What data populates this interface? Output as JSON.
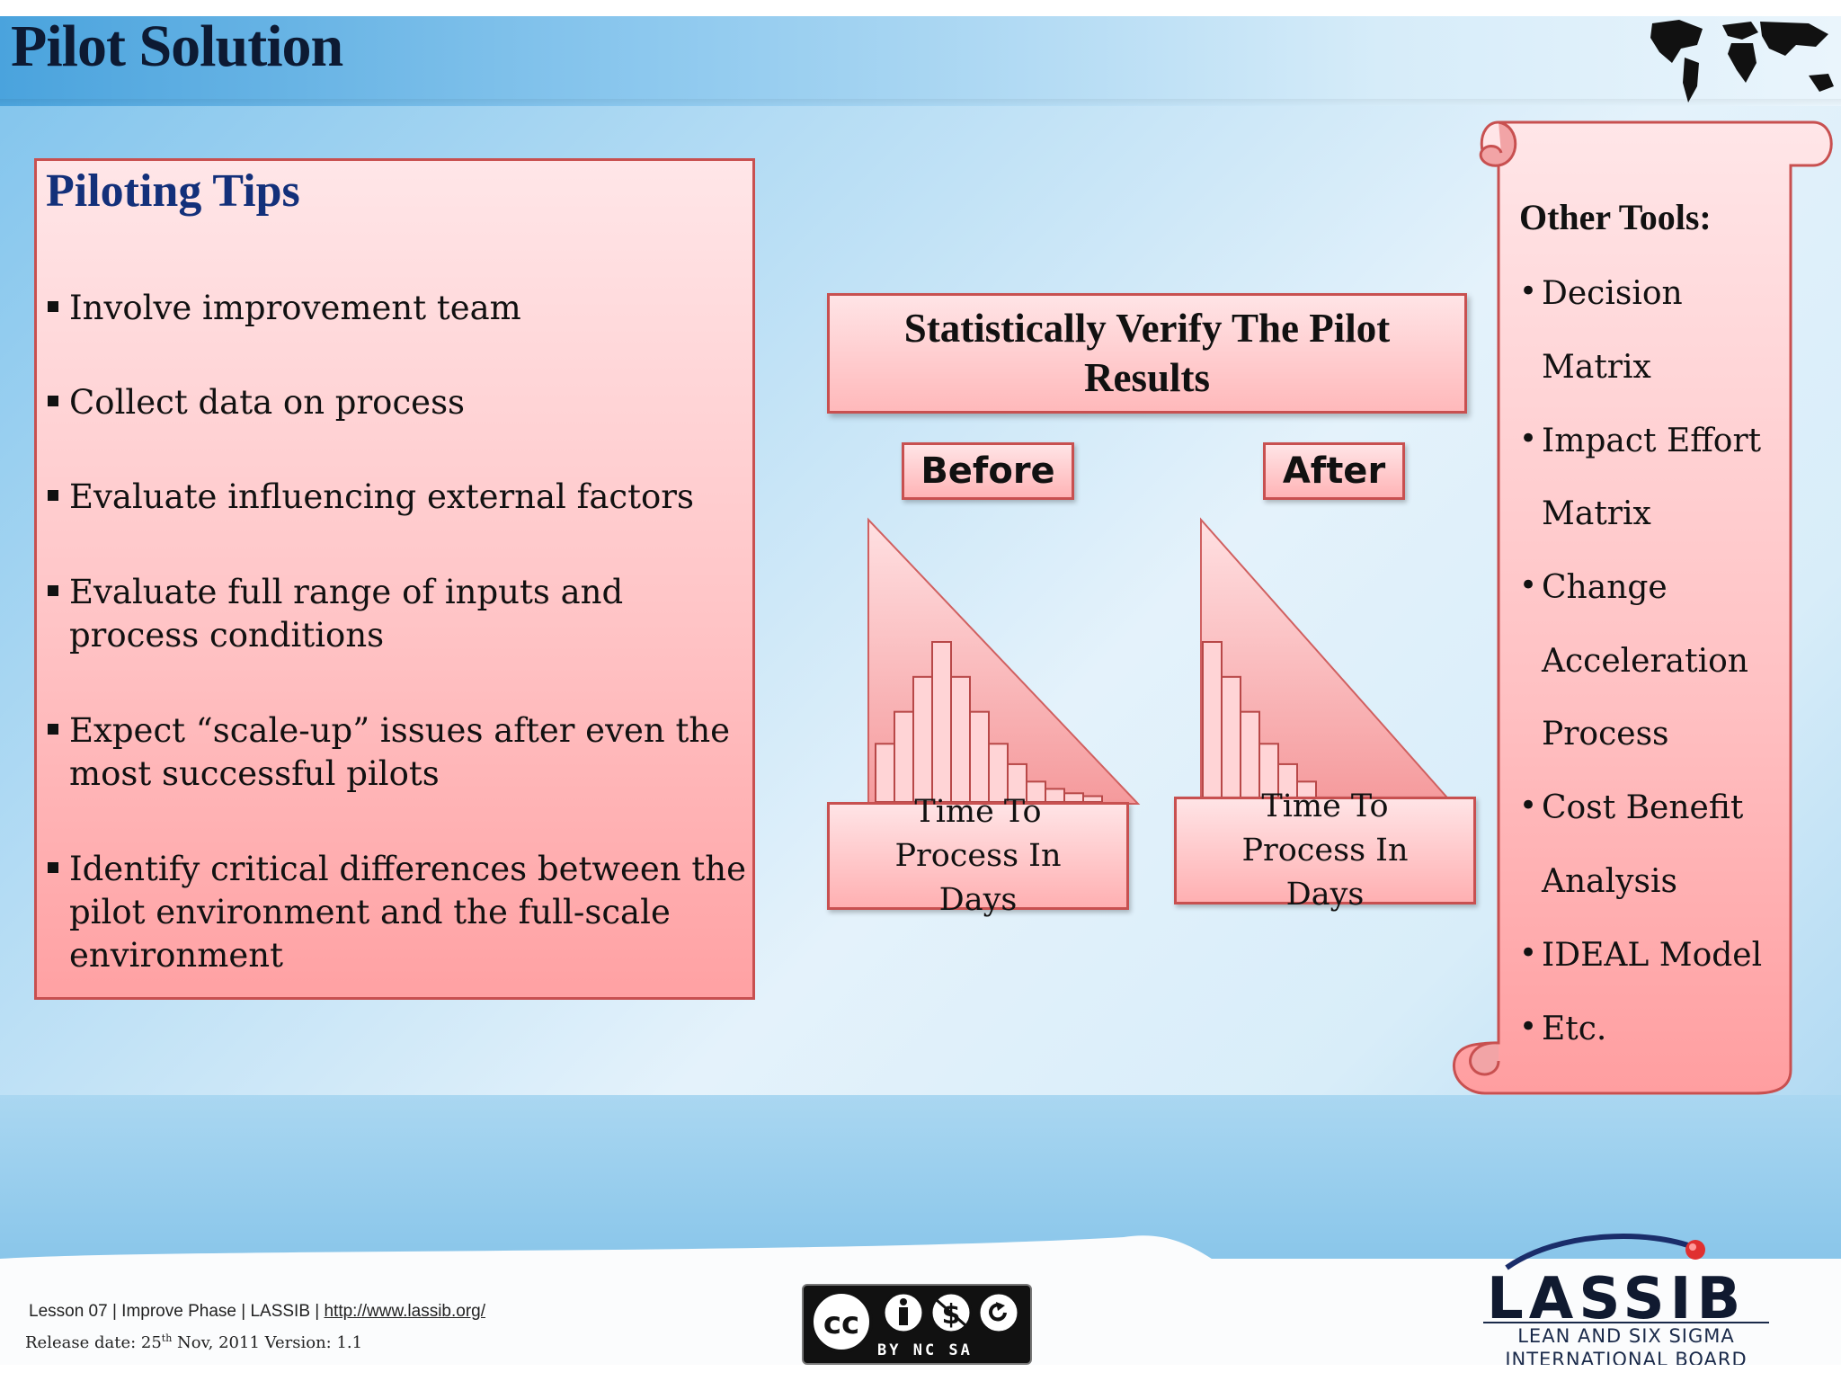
{
  "title": "Pilot Solution",
  "tips": {
    "heading": "Piloting Tips",
    "items": [
      "Involve improvement team",
      "Collect data on process",
      "Evaluate influencing external factors",
      "Evaluate full range of inputs and process conditions",
      "Expect “scale-up” issues after even the most successful pilots",
      "Identify critical differences between the pilot environment and the full-scale environment"
    ]
  },
  "center": {
    "verify_label": "Statistically Verify The Pilot Results",
    "before_label": "Before",
    "after_label": "After",
    "before_caption": "Time To Process In Days",
    "after_caption": "Time To Process In Days"
  },
  "chart_data": [
    {
      "type": "bar",
      "title": "Before",
      "xlabel": "Time To Process In Days",
      "ylabel": "",
      "values": [
        4.0,
        6.2,
        8.6,
        11.0,
        8.6,
        6.2,
        4.0,
        2.6,
        1.4,
        0.9,
        0.6,
        0.4
      ]
    },
    {
      "type": "bar",
      "title": "After",
      "xlabel": "Time To Process In Days",
      "ylabel": "",
      "values": [
        11.0,
        8.6,
        6.2,
        4.0,
        2.6,
        1.4
      ]
    }
  ],
  "other_tools": {
    "heading": "Other Tools:",
    "items": [
      [
        "Decision",
        "Matrix"
      ],
      [
        "Impact Effort",
        "Matrix"
      ],
      [
        "Change",
        "Acceleration",
        "Process"
      ],
      [
        "Cost Benefit",
        "Analysis"
      ],
      [
        "IDEAL Model"
      ],
      [
        "Etc."
      ]
    ]
  },
  "footer": {
    "lesson_text": "Lesson 07 | Improve Phase | LASSIB | ",
    "link_text": "http://www.lassib.org/",
    "release_prefix": "Release date: 25",
    "release_sup": "th",
    "release_suffix": " Nov, 2011  Version: 1.1",
    "license_labels": "BY  NC  SA",
    "logo_word": "LASSIB",
    "logo_line1": "LEAN AND SIX SIGMA",
    "logo_line2": "INTERNATIONAL BOARD"
  },
  "colors": {
    "box_border": "#c85050",
    "box_fill_top": "#ffe6e8",
    "box_fill_bottom": "#ffa1a3",
    "title_color": "#0d1a33",
    "tips_heading_color": "#13307a"
  }
}
